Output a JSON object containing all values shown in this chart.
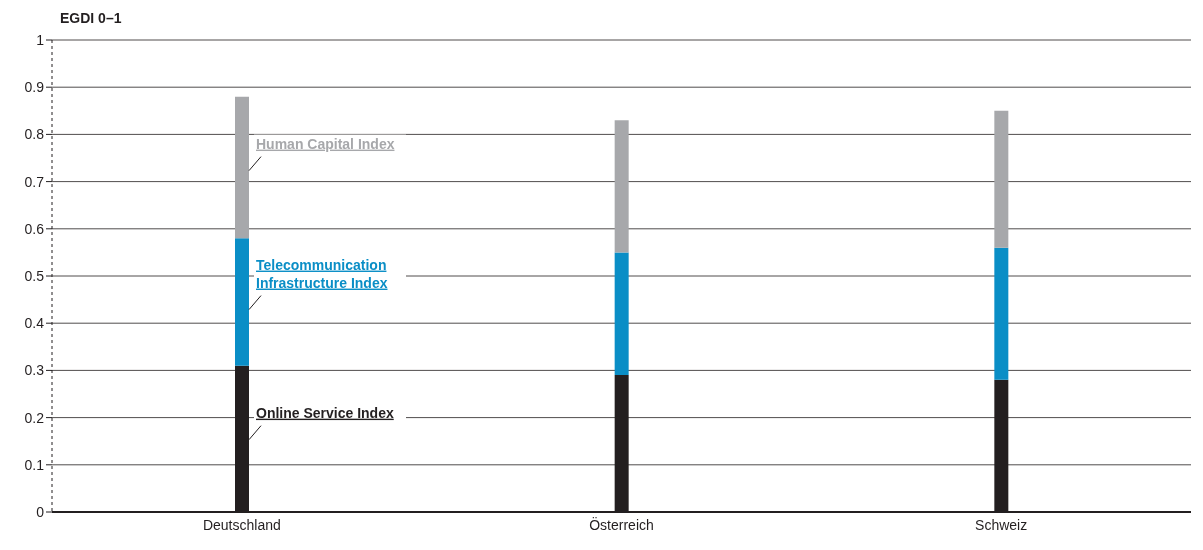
{
  "chart_data": {
    "type": "bar",
    "stacked": true,
    "ylabel": "EGDI 0–1",
    "categories": [
      "Deutschland",
      "Österreich",
      "Schweiz"
    ],
    "series": [
      {
        "name": "Online Service Index",
        "color": "#231f20",
        "values": [
          0.31,
          0.29,
          0.28
        ]
      },
      {
        "name": "Telecommunication\nInfrastructure Index",
        "color": "#0a8ec6",
        "values": [
          0.27,
          0.26,
          0.28
        ]
      },
      {
        "name": "Human Capital Index",
        "color": "#a7a8ab",
        "values": [
          0.3,
          0.28,
          0.29
        ]
      }
    ],
    "ylim": [
      0,
      1
    ],
    "yticks": [
      0,
      0.1,
      0.2,
      0.3,
      0.4,
      0.5,
      0.6,
      0.7,
      0.8,
      0.9,
      1
    ],
    "grid": "y",
    "legend": false
  }
}
